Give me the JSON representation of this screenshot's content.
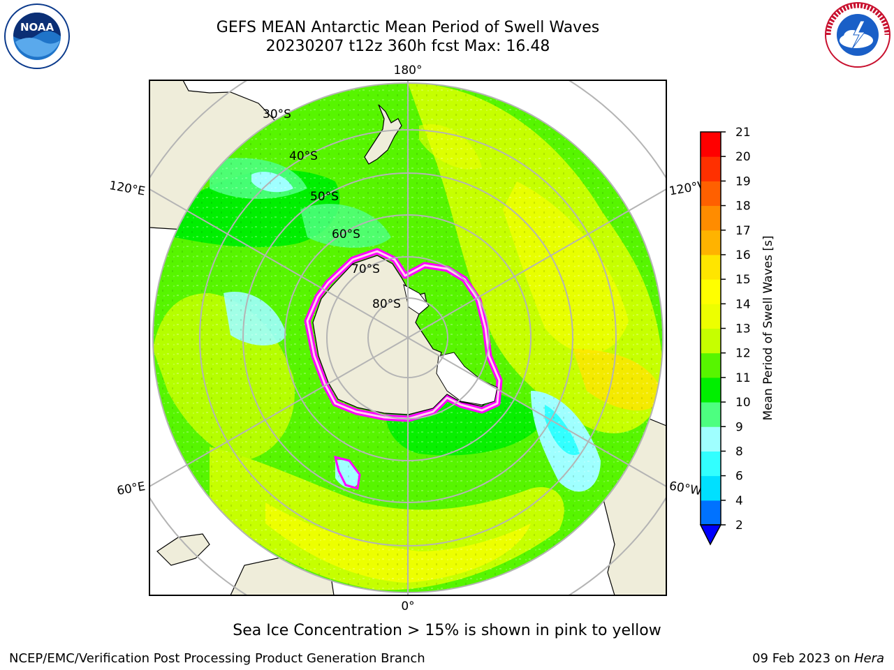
{
  "title": {
    "line1": "GEFS MEAN Antarctic Mean Period of Swell Waves",
    "line2": "20230207 t12z 360h fcst   Max: 16.48"
  },
  "logos": {
    "left": {
      "icon": "noaa-logo-icon",
      "text": "NOAA"
    },
    "right": {
      "icon": "nws-logo-icon",
      "text": "NATIONAL WEATHER SERVICE"
    }
  },
  "map": {
    "projection": "south-polar-stereographic",
    "longitude_labels": {
      "top": "180°",
      "bottom": "0°",
      "upper_left": "120°E",
      "upper_right": "120°W",
      "lower_left": "60°E",
      "lower_right": "60°W"
    },
    "latitude_labels": [
      "30°S",
      "40°S",
      "50°S",
      "60°S",
      "70°S",
      "80°S"
    ],
    "colors": {
      "land": "#efedda",
      "ice_shelf": "#ffffff",
      "grid": "#b4b4b4",
      "sea_ice_edge": "#ff00ff"
    }
  },
  "colorbar": {
    "label": "Mean Period of Swell Waves [s]",
    "ticks": [
      "2",
      "4",
      "6",
      "8",
      "9",
      "10",
      "11",
      "12",
      "13",
      "14",
      "15",
      "16",
      "17",
      "18",
      "19",
      "20",
      "21"
    ],
    "colors": [
      "#0072ff",
      "#00e0ff",
      "#32ffff",
      "#9fffff",
      "#4dff80",
      "#00ef00",
      "#57f500",
      "#c6ff00",
      "#edff00",
      "#ffff00",
      "#ffe500",
      "#ffb300",
      "#ff8c00",
      "#ff6000",
      "#ff3000",
      "#ff0000"
    ],
    "under_color": "#0000ff"
  },
  "caption": "Sea Ice Concentration > 15% is shown in pink to yellow",
  "footer": {
    "left": "NCEP/EMC/Verification Post Processing Product Generation Branch",
    "right_date": "09 Feb 2023 on ",
    "right_host": "Hera"
  }
}
